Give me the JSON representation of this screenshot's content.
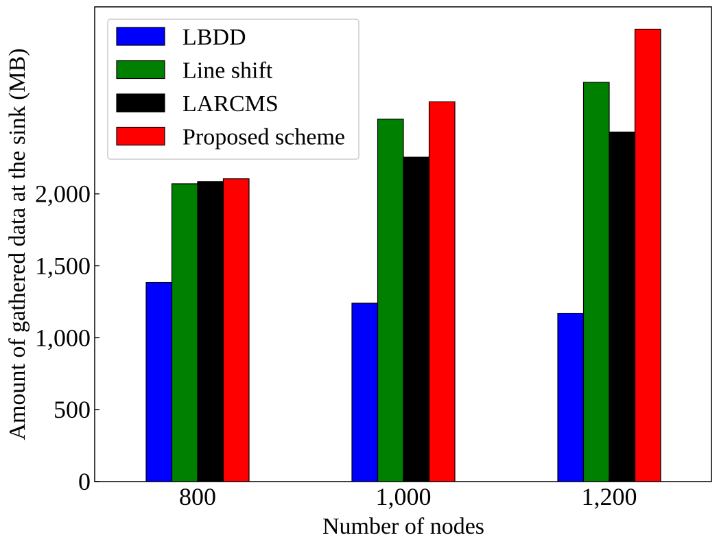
{
  "chart_data": {
    "type": "bar",
    "xlabel": "Number of nodes",
    "ylabel": "Amount of gathered data at the sink (MB)",
    "categories": [
      "800",
      "1,000",
      "1,200"
    ],
    "yticks": [
      {
        "value": 0,
        "label": "0"
      },
      {
        "value": 500,
        "label": "500"
      },
      {
        "value": 1000,
        "label": "1,000"
      },
      {
        "value": 1500,
        "label": "1,500"
      },
      {
        "value": 2000,
        "label": "2,000"
      }
    ],
    "ylim": [
      0,
      3300
    ],
    "grid": false,
    "legend_position": "top-left",
    "series": [
      {
        "name": "LBDD",
        "color": "#0000ff",
        "values": [
          1385,
          1240,
          1170
        ]
      },
      {
        "name": "Line shift",
        "color": "#008000",
        "values": [
          2070,
          2520,
          2775
        ]
      },
      {
        "name": "LARCMS",
        "color": "#000000",
        "values": [
          2085,
          2255,
          2430
        ]
      },
      {
        "name": "Proposed scheme",
        "color": "#ff0000",
        "values": [
          2105,
          2640,
          3145
        ]
      }
    ]
  }
}
